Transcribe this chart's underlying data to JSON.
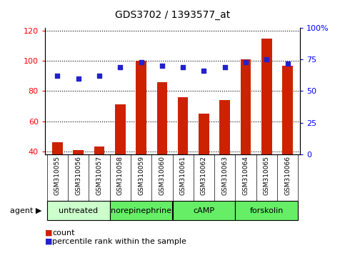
{
  "title": "GDS3702 / 1393577_at",
  "samples": [
    "GSM310055",
    "GSM310056",
    "GSM310057",
    "GSM310058",
    "GSM310059",
    "GSM310060",
    "GSM310061",
    "GSM310062",
    "GSM310063",
    "GSM310064",
    "GSM310065",
    "GSM310066"
  ],
  "count_values": [
    46,
    41,
    43,
    71,
    100,
    86,
    76,
    65,
    74,
    101,
    115,
    97
  ],
  "percentile_values": [
    62,
    60,
    62,
    69,
    73,
    70,
    69,
    66,
    69,
    73,
    75,
    72
  ],
  "ylim_left": [
    38,
    122
  ],
  "ylim_right": [
    0,
    100
  ],
  "yticks_left": [
    40,
    60,
    80,
    100,
    120
  ],
  "yticks_right": [
    0,
    25,
    50,
    75,
    100
  ],
  "ytick_labels_right": [
    "0",
    "25",
    "50",
    "75",
    "100%"
  ],
  "bar_color": "#cc2200",
  "dot_color": "#2222cc",
  "agent_groups": [
    {
      "label": "untreated",
      "start": 0,
      "end": 2,
      "color": "#ccffcc"
    },
    {
      "label": "norepinephrine",
      "start": 3,
      "end": 5,
      "color": "#66ee66"
    },
    {
      "label": "cAMP",
      "start": 6,
      "end": 8,
      "color": "#66ee66"
    },
    {
      "label": "forskolin",
      "start": 9,
      "end": 11,
      "color": "#66ee66"
    }
  ],
  "legend_count_label": "count",
  "legend_pct_label": "percentile rank within the sample",
  "background_color": "#ffffff",
  "tick_area_bg": "#cccccc",
  "figsize": [
    4.83,
    3.54
  ],
  "dpi": 100
}
